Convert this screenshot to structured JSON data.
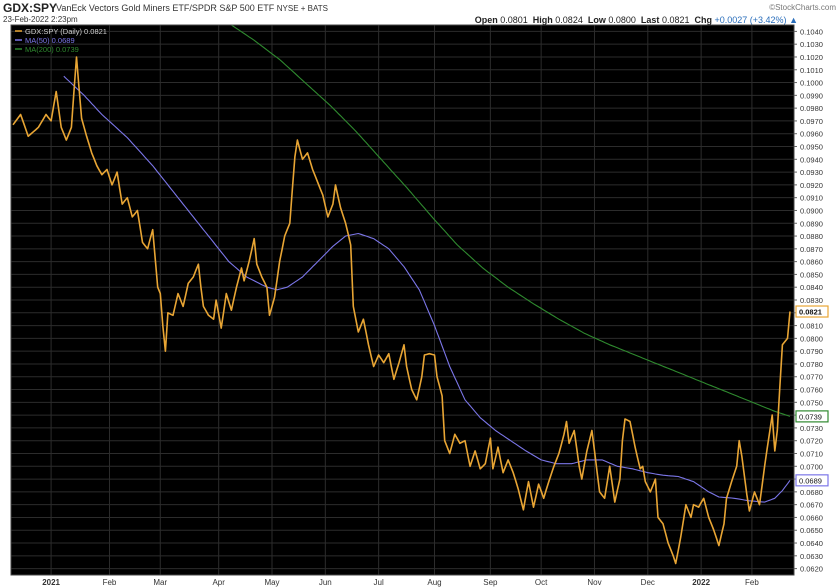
{
  "header": {
    "symbol": "GDX:SPY",
    "description": "VanEck Vectors Gold Miners ETF/SPDR S&P 500 ETF",
    "exchange": "NYSE + BATS",
    "date": "23-Feb-2022 2:23pm",
    "brand": "©StockCharts.com",
    "quote": {
      "open_label": "Open",
      "open": "0.0801",
      "high_label": "High",
      "high": "0.0824",
      "low_label": "Low",
      "low": "0.0800",
      "last_label": "Last",
      "last": "0.0821",
      "chg_label": "Chg",
      "chg": "+0.0027 (+3.42%)",
      "arrow": "▲"
    }
  },
  "chart_data": {
    "type": "line",
    "background": "#000000",
    "grid": true,
    "legend_position": "top-left",
    "ylim": [
      0.0615,
      0.1045
    ],
    "y_ticks": [
      "0.1040",
      "0.1030",
      "0.1020",
      "0.1010",
      "0.1000",
      "0.0990",
      "0.0980",
      "0.0970",
      "0.0960",
      "0.0950",
      "0.0940",
      "0.0930",
      "0.0920",
      "0.0910",
      "0.0900",
      "0.0890",
      "0.0880",
      "0.0870",
      "0.0860",
      "0.0850",
      "0.0840",
      "0.0830",
      "0.0820",
      "0.0810",
      "0.0800",
      "0.0790",
      "0.0780",
      "0.0770",
      "0.0760",
      "0.0750",
      "0.0740",
      "0.0730",
      "0.0720",
      "0.0710",
      "0.0700",
      "0.0690",
      "0.0680",
      "0.0670",
      "0.0660",
      "0.0650",
      "0.0640",
      "0.0630",
      "0.0620"
    ],
    "x_ticks": [
      {
        "label": "2021",
        "index": 15,
        "bold": true
      },
      {
        "label": "Feb",
        "index": 38
      },
      {
        "label": "Mar",
        "index": 58
      },
      {
        "label": "Apr",
        "index": 81
      },
      {
        "label": "May",
        "index": 102
      },
      {
        "label": "Jun",
        "index": 123
      },
      {
        "label": "Jul",
        "index": 144
      },
      {
        "label": "Aug",
        "index": 166
      },
      {
        "label": "Sep",
        "index": 188
      },
      {
        "label": "Oct",
        "index": 208
      },
      {
        "label": "Nov",
        "index": 229
      },
      {
        "label": "Dec",
        "index": 250
      },
      {
        "label": "2022",
        "index": 271,
        "bold": true
      },
      {
        "label": "Feb",
        "index": 291
      }
    ],
    "x_count": 307,
    "series": [
      {
        "name": "GDX:SPY (Daily) 0.0821",
        "color": "#e8a534",
        "value_label": "0.0821",
        "keypoints": [
          [
            0,
            0.0967
          ],
          [
            3,
            0.0975
          ],
          [
            6,
            0.0958
          ],
          [
            10,
            0.0965
          ],
          [
            13,
            0.0975
          ],
          [
            15,
            0.097
          ],
          [
            17,
            0.0993
          ],
          [
            19,
            0.0965
          ],
          [
            21,
            0.0955
          ],
          [
            23,
            0.0965
          ],
          [
            25,
            0.102
          ],
          [
            27,
            0.0972
          ],
          [
            29,
            0.0958
          ],
          [
            31,
            0.0945
          ],
          [
            33,
            0.0935
          ],
          [
            35,
            0.0928
          ],
          [
            37,
            0.0932
          ],
          [
            39,
            0.092
          ],
          [
            41,
            0.093
          ],
          [
            43,
            0.0905
          ],
          [
            45,
            0.091
          ],
          [
            47,
            0.0895
          ],
          [
            49,
            0.09
          ],
          [
            51,
            0.0875
          ],
          [
            53,
            0.087
          ],
          [
            55,
            0.0885
          ],
          [
            57,
            0.084
          ],
          [
            58,
            0.0835
          ],
          [
            59,
            0.081
          ],
          [
            60,
            0.079
          ],
          [
            61,
            0.082
          ],
          [
            63,
            0.0818
          ],
          [
            65,
            0.0835
          ],
          [
            67,
            0.0825
          ],
          [
            69,
            0.0843
          ],
          [
            71,
            0.0848
          ],
          [
            73,
            0.0858
          ],
          [
            74,
            0.084
          ],
          [
            75,
            0.0825
          ],
          [
            77,
            0.0818
          ],
          [
            79,
            0.0815
          ],
          [
            80,
            0.083
          ],
          [
            82,
            0.0808
          ],
          [
            84,
            0.0835
          ],
          [
            86,
            0.0822
          ],
          [
            88,
            0.084
          ],
          [
            90,
            0.0855
          ],
          [
            91,
            0.0845
          ],
          [
            93,
            0.086
          ],
          [
            95,
            0.0878
          ],
          [
            96,
            0.0858
          ],
          [
            98,
            0.0848
          ],
          [
            100,
            0.084
          ],
          [
            101,
            0.0818
          ],
          [
            103,
            0.0832
          ],
          [
            105,
            0.086
          ],
          [
            107,
            0.088
          ],
          [
            109,
            0.089
          ],
          [
            111,
            0.0942
          ],
          [
            112,
            0.0955
          ],
          [
            114,
            0.094
          ],
          [
            116,
            0.0945
          ],
          [
            118,
            0.0932
          ],
          [
            120,
            0.0922
          ],
          [
            122,
            0.0912
          ],
          [
            124,
            0.0895
          ],
          [
            126,
            0.0905
          ],
          [
            127,
            0.092
          ],
          [
            129,
            0.0902
          ],
          [
            131,
            0.089
          ],
          [
            133,
            0.0873
          ],
          [
            134,
            0.0825
          ],
          [
            136,
            0.0805
          ],
          [
            138,
            0.0815
          ],
          [
            140,
            0.0795
          ],
          [
            142,
            0.0778
          ],
          [
            144,
            0.0787
          ],
          [
            146,
            0.0781
          ],
          [
            148,
            0.0788
          ],
          [
            150,
            0.0768
          ],
          [
            152,
            0.0781
          ],
          [
            154,
            0.0795
          ],
          [
            155,
            0.0778
          ],
          [
            157,
            0.076
          ],
          [
            159,
            0.0752
          ],
          [
            161,
            0.077
          ],
          [
            162,
            0.0787
          ],
          [
            164,
            0.0788
          ],
          [
            166,
            0.0787
          ],
          [
            167,
            0.077
          ],
          [
            169,
            0.0755
          ],
          [
            170,
            0.072
          ],
          [
            172,
            0.071
          ],
          [
            174,
            0.0725
          ],
          [
            176,
            0.0718
          ],
          [
            178,
            0.072
          ],
          [
            180,
            0.07
          ],
          [
            182,
            0.0712
          ],
          [
            184,
            0.0698
          ],
          [
            186,
            0.0702
          ],
          [
            188,
            0.0722
          ],
          [
            189,
            0.0698
          ],
          [
            191,
            0.0715
          ],
          [
            193,
            0.0695
          ],
          [
            195,
            0.0705
          ],
          [
            197,
            0.0695
          ],
          [
            199,
            0.0682
          ],
          [
            201,
            0.0666
          ],
          [
            203,
            0.0688
          ],
          [
            205,
            0.0668
          ],
          [
            207,
            0.0686
          ],
          [
            209,
            0.0675
          ],
          [
            211,
            0.0688
          ],
          [
            213,
            0.07
          ],
          [
            215,
            0.071
          ],
          [
            217,
            0.0725
          ],
          [
            218,
            0.0735
          ],
          [
            219,
            0.0718
          ],
          [
            221,
            0.0728
          ],
          [
            223,
            0.07
          ],
          [
            224,
            0.069
          ],
          [
            226,
            0.0712
          ],
          [
            228,
            0.0728
          ],
          [
            229,
            0.0712
          ],
          [
            231,
            0.068
          ],
          [
            233,
            0.0675
          ],
          [
            235,
            0.07
          ],
          [
            237,
            0.0672
          ],
          [
            239,
            0.069
          ],
          [
            240,
            0.072
          ],
          [
            241,
            0.0737
          ],
          [
            243,
            0.0735
          ],
          [
            245,
            0.0715
          ],
          [
            247,
            0.0698
          ],
          [
            248,
            0.07
          ],
          [
            249,
            0.0688
          ],
          [
            251,
            0.068
          ],
          [
            253,
            0.069
          ],
          [
            254,
            0.066
          ],
          [
            256,
            0.0655
          ],
          [
            258,
            0.064
          ],
          [
            260,
            0.063
          ],
          [
            261,
            0.0624
          ],
          [
            263,
            0.0645
          ],
          [
            265,
            0.067
          ],
          [
            267,
            0.066
          ],
          [
            268,
            0.067
          ],
          [
            270,
            0.0668
          ],
          [
            272,
            0.0675
          ],
          [
            274,
            0.066
          ],
          [
            276,
            0.065
          ],
          [
            278,
            0.0638
          ],
          [
            280,
            0.0655
          ],
          [
            281,
            0.0675
          ],
          [
            283,
            0.0688
          ],
          [
            285,
            0.07
          ],
          [
            286,
            0.072
          ],
          [
            287,
            0.0708
          ],
          [
            289,
            0.0678
          ],
          [
            290,
            0.0665
          ],
          [
            292,
            0.068
          ],
          [
            294,
            0.067
          ],
          [
            296,
            0.07
          ],
          [
            298,
            0.0727
          ],
          [
            299,
            0.074
          ],
          [
            300,
            0.0712
          ],
          [
            301,
            0.0728
          ],
          [
            303,
            0.0795
          ],
          [
            305,
            0.08
          ],
          [
            306,
            0.0821
          ]
        ]
      },
      {
        "name": "MA(50) 0.0689",
        "color": "#7b76e8",
        "value_label": "0.0689",
        "keypoints": [
          [
            20,
            0.1005
          ],
          [
            28,
            0.099
          ],
          [
            35,
            0.0975
          ],
          [
            45,
            0.0957
          ],
          [
            55,
            0.0935
          ],
          [
            65,
            0.091
          ],
          [
            75,
            0.0885
          ],
          [
            85,
            0.086
          ],
          [
            92,
            0.0848
          ],
          [
            100,
            0.084
          ],
          [
            104,
            0.0838
          ],
          [
            108,
            0.084
          ],
          [
            114,
            0.0848
          ],
          [
            120,
            0.086
          ],
          [
            126,
            0.0872
          ],
          [
            131,
            0.088
          ],
          [
            136,
            0.0882
          ],
          [
            142,
            0.0878
          ],
          [
            148,
            0.087
          ],
          [
            154,
            0.0856
          ],
          [
            160,
            0.0838
          ],
          [
            166,
            0.081
          ],
          [
            172,
            0.0778
          ],
          [
            178,
            0.0752
          ],
          [
            184,
            0.0738
          ],
          [
            190,
            0.0728
          ],
          [
            196,
            0.072
          ],
          [
            202,
            0.0712
          ],
          [
            208,
            0.0705
          ],
          [
            214,
            0.0702
          ],
          [
            220,
            0.0702
          ],
          [
            226,
            0.0705
          ],
          [
            232,
            0.0705
          ],
          [
            238,
            0.07
          ],
          [
            244,
            0.0698
          ],
          [
            250,
            0.0695
          ],
          [
            256,
            0.0693
          ],
          [
            262,
            0.0692
          ],
          [
            268,
            0.0688
          ],
          [
            274,
            0.068
          ],
          [
            278,
            0.0676
          ],
          [
            284,
            0.0675
          ],
          [
            290,
            0.0673
          ],
          [
            296,
            0.0672
          ],
          [
            300,
            0.0675
          ],
          [
            303,
            0.0681
          ],
          [
            306,
            0.0689
          ]
        ]
      },
      {
        "name": "MA(200) 0.0739",
        "color": "#2f8a2f",
        "value_label": "0.0739",
        "keypoints": [
          [
            86,
            0.1045
          ],
          [
            95,
            0.1033
          ],
          [
            105,
            0.1018
          ],
          [
            115,
            0.1
          ],
          [
            125,
            0.0982
          ],
          [
            135,
            0.0962
          ],
          [
            145,
            0.094
          ],
          [
            155,
            0.0918
          ],
          [
            165,
            0.0895
          ],
          [
            175,
            0.0873
          ],
          [
            185,
            0.0855
          ],
          [
            195,
            0.084
          ],
          [
            205,
            0.0827
          ],
          [
            215,
            0.0815
          ],
          [
            225,
            0.0804
          ],
          [
            235,
            0.0795
          ],
          [
            245,
            0.0787
          ],
          [
            255,
            0.0779
          ],
          [
            265,
            0.0771
          ],
          [
            275,
            0.0763
          ],
          [
            285,
            0.0755
          ],
          [
            295,
            0.0747
          ],
          [
            300,
            0.0743
          ],
          [
            306,
            0.0739
          ]
        ]
      }
    ]
  }
}
